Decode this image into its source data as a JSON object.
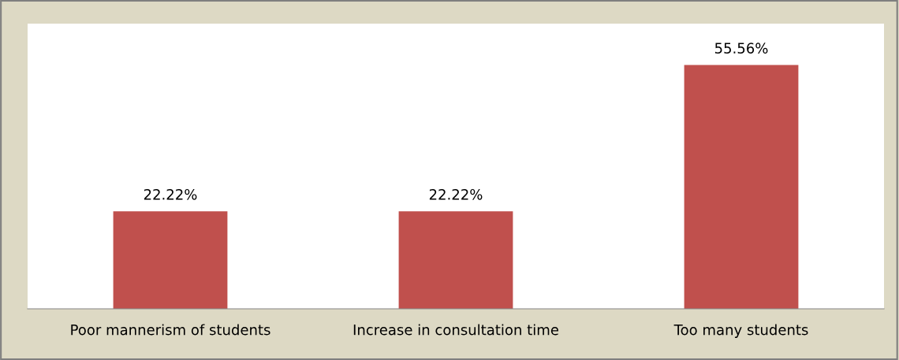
{
  "chart_data": {
    "type": "bar",
    "categories": [
      "Poor mannerism of students",
      "Increase in consultation time",
      "Too many students"
    ],
    "values": [
      22.22,
      22.22,
      55.56
    ],
    "color": "#c0504d",
    "value_labels": [
      "22.22%",
      "22.22%",
      "55.56%"
    ],
    "ylim": [
      0,
      65
    ],
    "tick_labels": "x",
    "grid": false,
    "legend": false
  }
}
